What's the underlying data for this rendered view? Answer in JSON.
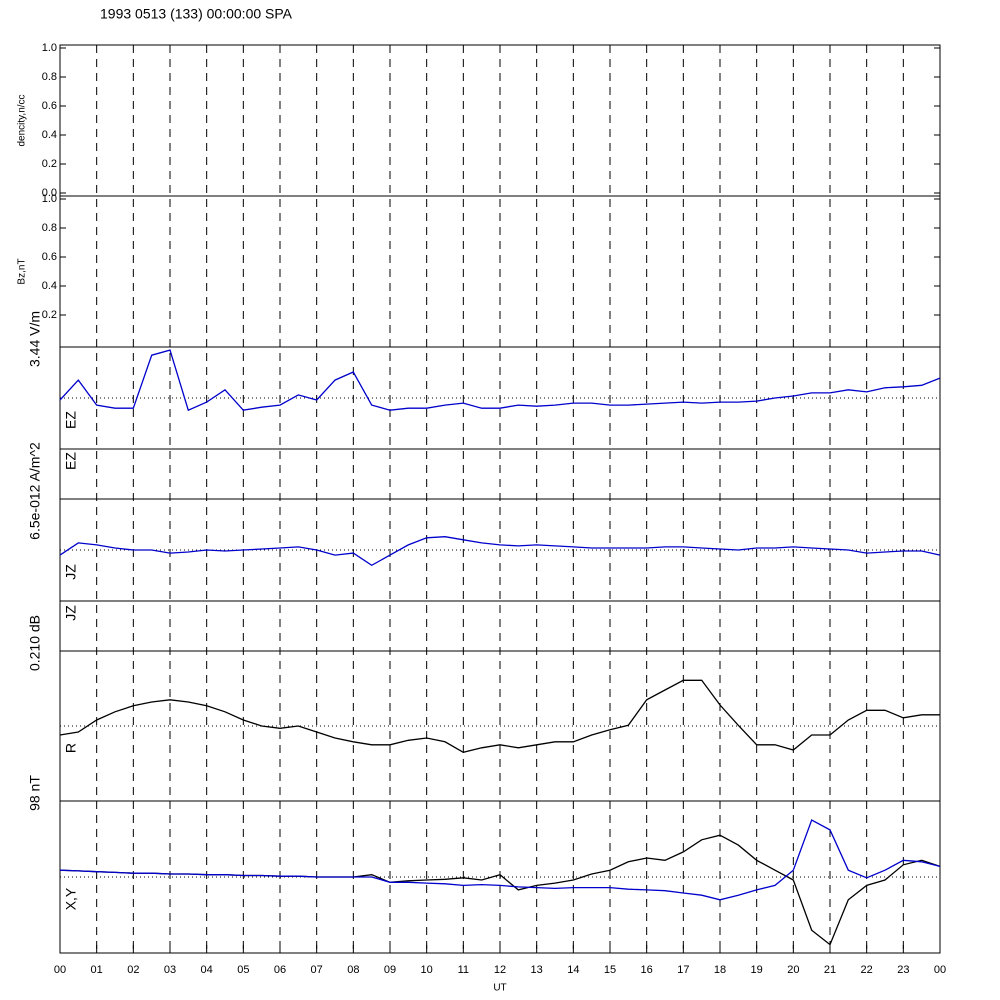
{
  "chart_data": [
    {
      "type": "line",
      "title": "1993 0513 (133) 00:00:00 SPA",
      "ylabel": "dencity,n/cc",
      "ylim": [
        0,
        1
      ],
      "yticks": [
        {
          "value": 0,
          "label": "0.0"
        },
        {
          "value": 0.2,
          "label": "0.2"
        },
        {
          "value": 0.4,
          "label": "0.4"
        },
        {
          "value": 0.6,
          "label": "0.6"
        },
        {
          "value": 0.8,
          "label": "0.8"
        },
        {
          "value": 1,
          "label": "1.0"
        }
      ]
    },
    {
      "type": "line",
      "ylabel": "Bz,nT",
      "ylim": [
        0,
        1
      ],
      "yticks": [
        {
          "value": 0.2,
          "label": "0.2"
        },
        {
          "value": 0.4,
          "label": "0.4"
        },
        {
          "value": 0.6,
          "label": "0.6"
        },
        {
          "value": 0.8,
          "label": "0.8"
        },
        {
          "value": 1,
          "label": "1.0"
        }
      ]
    },
    {
      "type": "line",
      "ylabel": "3.44 V/m",
      "name": "EZ",
      "ylim": [
        -1,
        1
      ],
      "zero_line": true,
      "x": [
        0,
        0.5,
        1,
        1.5,
        2,
        2.5,
        3,
        3.5,
        4,
        4.5,
        5,
        5.5,
        6,
        6.5,
        7,
        7.5,
        8,
        8.5,
        9,
        9.5,
        10,
        10.5,
        11,
        11.5,
        12,
        12.5,
        13,
        13.5,
        14,
        14.5,
        15,
        15.5,
        16,
        16.5,
        17,
        17.5,
        18,
        18.5,
        19,
        19.5,
        20,
        20.5,
        21,
        21.5,
        22,
        22.5,
        23,
        23.5,
        24
      ],
      "series": [
        {
          "color": "#0000cc",
          "values": [
            -0.04,
            0.35,
            -0.14,
            -0.2,
            -0.2,
            0.84,
            0.94,
            -0.24,
            -0.08,
            0.16,
            -0.24,
            -0.18,
            -0.14,
            0.06,
            -0.04,
            0.35,
            0.51,
            -0.14,
            -0.24,
            -0.2,
            -0.2,
            -0.14,
            -0.1,
            -0.2,
            -0.2,
            -0.14,
            -0.16,
            -0.14,
            -0.1,
            -0.1,
            -0.14,
            -0.14,
            -0.12,
            -0.1,
            -0.08,
            -0.1,
            -0.08,
            -0.08,
            -0.06,
            0,
            0.04,
            0.1,
            0.1,
            0.16,
            0.12,
            0.2,
            0.22,
            0.25,
            0.39
          ]
        }
      ]
    },
    {
      "type": "line",
      "name": "EZ"
    },
    {
      "type": "line",
      "ylabel": "6.5e-012 A/m^2",
      "name": "JZ",
      "ylim": [
        -1,
        1
      ],
      "zero_line": true,
      "x": [
        0,
        0.5,
        1,
        1.5,
        2,
        2.5,
        3,
        3.5,
        4,
        4.5,
        5,
        5.5,
        6,
        6.5,
        7,
        7.5,
        8,
        8.5,
        9,
        9.5,
        10,
        10.5,
        11,
        11.5,
        12,
        12.5,
        13,
        13.5,
        14,
        14.5,
        15,
        15.5,
        16,
        16.5,
        17,
        17.5,
        18,
        18.5,
        19,
        19.5,
        20,
        20.5,
        21,
        21.5,
        22,
        22.5,
        23,
        23.5,
        24
      ],
      "series": [
        {
          "color": "#0000cc",
          "values": [
            -0.1,
            0.14,
            0.1,
            0.04,
            0,
            0,
            -0.06,
            -0.04,
            0,
            -0.02,
            0,
            0.02,
            0.04,
            0.06,
            0,
            -0.1,
            -0.06,
            -0.3,
            -0.1,
            0.1,
            0.24,
            0.26,
            0.2,
            0.14,
            0.1,
            0.08,
            0.1,
            0.08,
            0.06,
            0.04,
            0.04,
            0.04,
            0.04,
            0.06,
            0.06,
            0.04,
            0.02,
            0,
            0.04,
            0.04,
            0.06,
            0.04,
            0.02,
            0,
            -0.06,
            -0.04,
            -0.02,
            -0.02,
            -0.1
          ]
        }
      ]
    },
    {
      "type": "line",
      "name": "JZ"
    },
    {
      "type": "line",
      "ylabel": "0.210 dB",
      "name": "R",
      "ylim": [
        -1,
        1
      ],
      "zero_line": true,
      "x": [
        0,
        0.5,
        1,
        1.5,
        2,
        2.5,
        3,
        3.5,
        4,
        4.5,
        5,
        5.5,
        6,
        6.5,
        7,
        7.5,
        8,
        8.5,
        9,
        9.5,
        10,
        10.5,
        11,
        11.5,
        12,
        12.5,
        13,
        13.5,
        14,
        14.5,
        15,
        15.5,
        16,
        16.5,
        17,
        17.5,
        18,
        18.5,
        19,
        19.5,
        20,
        20.5,
        21,
        21.5,
        22,
        22.5,
        23,
        23.5,
        24
      ],
      "series": [
        {
          "color": "#000000",
          "values": [
            -0.12,
            -0.08,
            0.08,
            0.19,
            0.27,
            0.32,
            0.35,
            0.32,
            0.27,
            0.19,
            0.08,
            0,
            -0.03,
            0,
            -0.08,
            -0.16,
            -0.21,
            -0.25,
            -0.25,
            -0.19,
            -0.16,
            -0.21,
            -0.35,
            -0.29,
            -0.25,
            -0.29,
            -0.25,
            -0.21,
            -0.21,
            -0.12,
            -0.05,
            0.01,
            0.35,
            0.48,
            0.61,
            0.61,
            0.28,
            0.01,
            -0.25,
            -0.25,
            -0.32,
            -0.12,
            -0.12,
            0.08,
            0.21,
            0.21,
            0.11,
            0.15,
            0.15
          ]
        }
      ]
    },
    {
      "type": "line",
      "ylabel": "98 nT",
      "name": "X,Y",
      "ylim": [
        -1,
        1
      ],
      "zero_line": true,
      "xlabel": "UT",
      "xlim": [
        0,
        24
      ],
      "grid": true,
      "x": [
        0,
        0.5,
        1,
        1.5,
        2,
        2.5,
        3,
        3.5,
        4,
        4.5,
        5,
        5.5,
        6,
        6.5,
        7,
        7.5,
        8,
        8.5,
        9,
        9.5,
        10,
        10.5,
        11,
        11.5,
        12,
        12.5,
        13,
        13.5,
        14,
        14.5,
        15,
        15.5,
        16,
        16.5,
        17,
        17.5,
        18,
        18.5,
        19,
        19.5,
        20,
        20.5,
        21,
        21.5,
        22,
        22.5,
        23,
        23.5,
        24
      ],
      "xticks": [
        {
          "value": 0,
          "label": "00"
        },
        {
          "value": 1,
          "label": "01"
        },
        {
          "value": 2,
          "label": "02"
        },
        {
          "value": 3,
          "label": "03"
        },
        {
          "value": 4,
          "label": "04"
        },
        {
          "value": 5,
          "label": "05"
        },
        {
          "value": 6,
          "label": "06"
        },
        {
          "value": 7,
          "label": "07"
        },
        {
          "value": 8,
          "label": "08"
        },
        {
          "value": 9,
          "label": "09"
        },
        {
          "value": 10,
          "label": "10"
        },
        {
          "value": 11,
          "label": "11"
        },
        {
          "value": 12,
          "label": "12"
        },
        {
          "value": 13,
          "label": "13"
        },
        {
          "value": 14,
          "label": "14"
        },
        {
          "value": 15,
          "label": "15"
        },
        {
          "value": 16,
          "label": "16"
        },
        {
          "value": 17,
          "label": "17"
        },
        {
          "value": 18,
          "label": "18"
        },
        {
          "value": 19,
          "label": "19"
        },
        {
          "value": 20,
          "label": "20"
        },
        {
          "value": 21,
          "label": "21"
        },
        {
          "value": 22,
          "label": "22"
        },
        {
          "value": 23,
          "label": "23"
        },
        {
          "value": 24,
          "label": "00"
        }
      ],
      "series": [
        {
          "color": "#000000",
          "values": [
            0.09,
            0.08,
            0.07,
            0.06,
            0.05,
            0.05,
            0.04,
            0.04,
            0.03,
            0.03,
            0.02,
            0.02,
            0.01,
            0.01,
            0,
            0,
            0,
            0.03,
            -0.07,
            -0.05,
            -0.04,
            -0.03,
            -0.01,
            -0.04,
            0.03,
            -0.17,
            -0.11,
            -0.08,
            -0.04,
            0.04,
            0.09,
            0.2,
            0.25,
            0.22,
            0.33,
            0.49,
            0.55,
            0.42,
            0.22,
            0.09,
            -0.04,
            -0.7,
            -0.89,
            -0.3,
            -0.11,
            -0.04,
            0.16,
            0.22,
            0.14
          ]
        },
        {
          "color": "#0000cc",
          "values": [
            0.09,
            0.08,
            0.07,
            0.06,
            0.05,
            0.05,
            0.04,
            0.04,
            0.03,
            0.03,
            0.02,
            0.02,
            0.01,
            0.01,
            0,
            0,
            0,
            0,
            -0.07,
            -0.07,
            -0.08,
            -0.09,
            -0.11,
            -0.1,
            -0.11,
            -0.13,
            -0.14,
            -0.15,
            -0.14,
            -0.14,
            -0.14,
            -0.16,
            -0.17,
            -0.18,
            -0.21,
            -0.24,
            -0.3,
            -0.24,
            -0.17,
            -0.11,
            0.09,
            0.75,
            0.62,
            0.09,
            -0.01,
            0.09,
            0.22,
            0.2,
            0.14
          ]
        }
      ]
    }
  ]
}
